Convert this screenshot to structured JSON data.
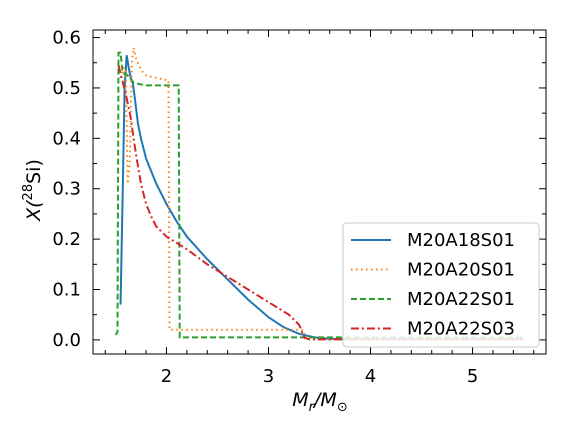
{
  "chart_data": {
    "type": "line",
    "xlabel_main": "M",
    "xlabel_sub1": "r",
    "xlabel_mid": "/M",
    "xlabel_sub2": "⊙",
    "ylabel_pre": "X(",
    "ylabel_sup": "28",
    "ylabel_post": "Si)",
    "xlim": [
      1.28,
      5.72
    ],
    "ylim": [
      -0.028,
      0.615
    ],
    "x_ticks": [
      2,
      3,
      4,
      5
    ],
    "x_tick_labels": [
      "2",
      "3",
      "4",
      "5"
    ],
    "y_ticks": [
      0.0,
      0.1,
      0.2,
      0.3,
      0.4,
      0.5,
      0.6
    ],
    "y_tick_labels": [
      "0.0",
      "0.1",
      "0.2",
      "0.3",
      "0.4",
      "0.5",
      "0.6"
    ],
    "grid": false,
    "legend_position": "lower-right",
    "series": [
      {
        "name": "M20A18S01",
        "color": "#1f77b4",
        "style": "solid",
        "points": [
          [
            1.55,
            0.07
          ],
          [
            1.57,
            0.28
          ],
          [
            1.59,
            0.5
          ],
          [
            1.61,
            0.565
          ],
          [
            1.63,
            0.54
          ],
          [
            1.65,
            0.52
          ],
          [
            1.67,
            0.51
          ],
          [
            1.69,
            0.48
          ],
          [
            1.72,
            0.43
          ],
          [
            1.75,
            0.4
          ],
          [
            1.8,
            0.36
          ],
          [
            1.9,
            0.31
          ],
          [
            2.0,
            0.27
          ],
          [
            2.1,
            0.235
          ],
          [
            2.2,
            0.205
          ],
          [
            2.4,
            0.16
          ],
          [
            2.6,
            0.12
          ],
          [
            2.8,
            0.08
          ],
          [
            3.0,
            0.045
          ],
          [
            3.15,
            0.025
          ],
          [
            3.3,
            0.012
          ],
          [
            3.45,
            0.005
          ],
          [
            3.6,
            0.002
          ],
          [
            4.0,
            0.001
          ],
          [
            5.5,
            0.001
          ]
        ]
      },
      {
        "name": "M20A20S01",
        "color": "#ff7f0e",
        "style": "dotted",
        "points": [
          [
            1.55,
            0.52
          ],
          [
            1.58,
            0.54
          ],
          [
            1.6,
            0.54
          ],
          [
            1.62,
            0.31
          ],
          [
            1.64,
            0.35
          ],
          [
            1.66,
            0.55
          ],
          [
            1.68,
            0.58
          ],
          [
            1.7,
            0.56
          ],
          [
            1.75,
            0.535
          ],
          [
            1.8,
            0.525
          ],
          [
            1.9,
            0.52
          ],
          [
            2.02,
            0.515
          ],
          [
            2.03,
            0.02
          ],
          [
            2.5,
            0.02
          ],
          [
            3.0,
            0.02
          ],
          [
            3.34,
            0.02
          ],
          [
            3.36,
            0.001
          ],
          [
            5.5,
            0.001
          ]
        ]
      },
      {
        "name": "M20A22S01",
        "color": "#2ca02c",
        "style": "dashed",
        "points": [
          [
            1.5,
            0.01
          ],
          [
            1.52,
            0.015
          ],
          [
            1.53,
            0.57
          ],
          [
            1.55,
            0.57
          ],
          [
            1.57,
            0.53
          ],
          [
            1.62,
            0.525
          ],
          [
            1.68,
            0.51
          ],
          [
            1.8,
            0.505
          ],
          [
            2.0,
            0.505
          ],
          [
            2.12,
            0.505
          ],
          [
            2.13,
            0.005
          ],
          [
            2.5,
            0.005
          ],
          [
            3.0,
            0.005
          ],
          [
            4.0,
            0.005
          ],
          [
            5.5,
            0.005
          ]
        ]
      },
      {
        "name": "M20A22S03",
        "color": "#d62728",
        "style": "dashdot",
        "points": [
          [
            1.53,
            0.545
          ],
          [
            1.56,
            0.52
          ],
          [
            1.6,
            0.49
          ],
          [
            1.65,
            0.44
          ],
          [
            1.7,
            0.37
          ],
          [
            1.75,
            0.31
          ],
          [
            1.8,
            0.27
          ],
          [
            1.85,
            0.245
          ],
          [
            1.9,
            0.225
          ],
          [
            2.0,
            0.205
          ],
          [
            2.2,
            0.18
          ],
          [
            2.4,
            0.15
          ],
          [
            2.6,
            0.125
          ],
          [
            2.8,
            0.1
          ],
          [
            3.0,
            0.075
          ],
          [
            3.2,
            0.05
          ],
          [
            3.3,
            0.03
          ],
          [
            3.35,
            0.005
          ],
          [
            3.4,
            0.001
          ],
          [
            5.5,
            0.001
          ]
        ]
      }
    ]
  }
}
